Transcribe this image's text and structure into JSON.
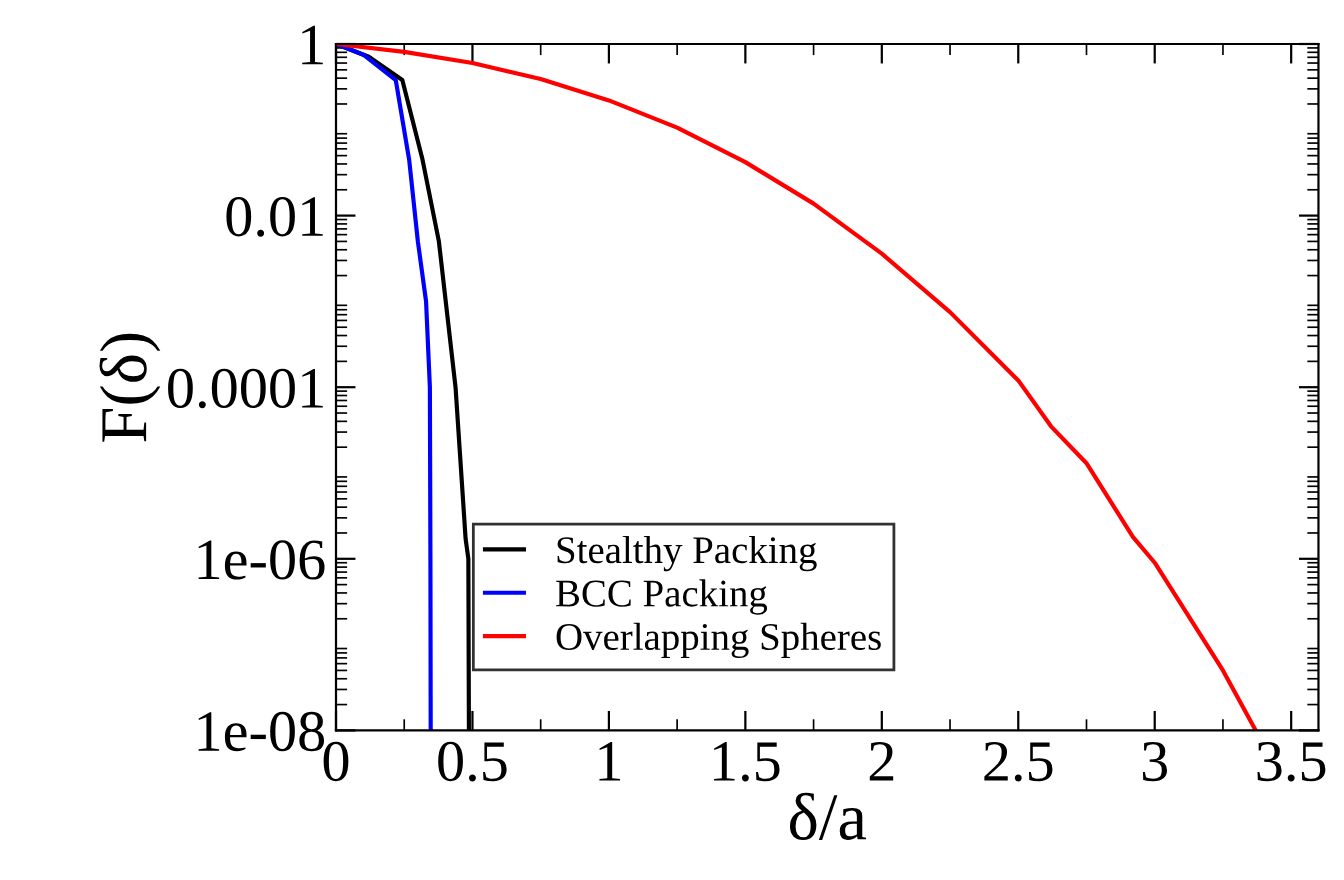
{
  "chart_data": {
    "type": "line",
    "xlabel": "δ/a",
    "ylabel": "F(δ)",
    "log": "y",
    "xlim": [
      0,
      3.6
    ],
    "xticks": [
      0,
      0.5,
      1,
      1.5,
      2,
      2.5,
      3,
      3.5
    ],
    "ylim": [
      1e-08,
      1
    ],
    "yticks": [
      {
        "value": 1,
        "label": "1"
      },
      {
        "value": 0.01,
        "label": "0.01"
      },
      {
        "value": 0.0001,
        "label": "0.0001"
      },
      {
        "value": 1e-06,
        "label": "1e-06"
      },
      {
        "value": 1e-08,
        "label": "1e-08"
      }
    ],
    "grid": false,
    "legend": "bottom left",
    "marker": "none",
    "line_style": "solid",
    "series": [
      {
        "name": "Stealthy Packing",
        "color": "#000000",
        "x": [
          0,
          0.12,
          0.243,
          0.317,
          0.377,
          0.438,
          0.475,
          0.485,
          0.487
        ],
        "values": [
          1,
          0.71,
          0.38,
          0.045,
          0.005,
          0.0001,
          1.7e-06,
          1e-06,
          1e-08
        ]
      },
      {
        "name": "BCC Packing",
        "color": "#0000ff",
        "x": [
          0,
          0.1,
          0.219,
          0.268,
          0.3,
          0.33,
          0.344,
          0.346,
          0.347
        ],
        "values": [
          1,
          0.75,
          0.38,
          0.045,
          0.005,
          0.001,
          0.0001,
          1e-06,
          1e-08
        ]
      },
      {
        "name": "Overlapping Spheres",
        "color": "#ff0000",
        "x": [
          0,
          0.25,
          0.5,
          0.75,
          1,
          1.25,
          1.5,
          1.75,
          2,
          2.25,
          2.5,
          2.62,
          2.75,
          2.92,
          3,
          3.25,
          3.37
        ],
        "values": [
          1,
          0.81,
          0.6,
          0.39,
          0.22,
          0.106,
          0.042,
          0.0138,
          0.0036,
          0.00075,
          0.00012,
          3.5e-05,
          1.3e-05,
          1.8e-06,
          9e-07,
          5e-08,
          1e-08
        ]
      }
    ]
  }
}
